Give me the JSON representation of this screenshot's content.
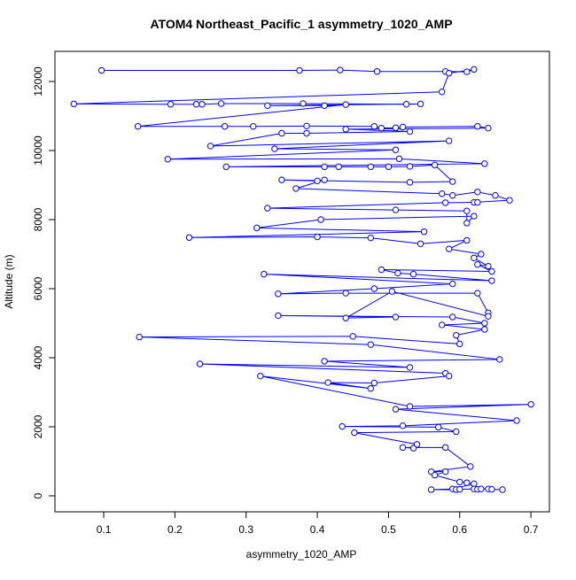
{
  "chart_data": {
    "type": "line",
    "title": "ATOM4 Northeast_Pacific_1 asymmetry_1020_AMP",
    "x_label": "asymmetry_1020_AMP",
    "y_label": "Altitude (m)",
    "color": "#0000ff",
    "markers": true,
    "xlim": [
      0.0315,
      0.726
    ],
    "ylim": [
      -462,
      12872
    ],
    "xticks": [
      0.1,
      0.2,
      0.3,
      0.4,
      0.5,
      0.6,
      0.7
    ],
    "yticks": [
      0,
      2000,
      4000,
      6000,
      8000,
      10000,
      12000
    ],
    "x": [
      0.097,
      0.375,
      0.432,
      0.484,
      0.58,
      0.61,
      0.62,
      0.585,
      0.575,
      0.058,
      0.194,
      0.23,
      0.238,
      0.265,
      0.38,
      0.525,
      0.545,
      0.33,
      0.41,
      0.44,
      0.148,
      0.27,
      0.31,
      0.385,
      0.48,
      0.49,
      0.51,
      0.52,
      0.625,
      0.64,
      0.44,
      0.53,
      0.385,
      0.35,
      0.25,
      0.585,
      0.34,
      0.51,
      0.19,
      0.515,
      0.635,
      0.272,
      0.41,
      0.43,
      0.475,
      0.5,
      0.53,
      0.565,
      0.59,
      0.53,
      0.35,
      0.4,
      0.41,
      0.37,
      0.575,
      0.59,
      0.625,
      0.65,
      0.67,
      0.62,
      0.625,
      0.58,
      0.33,
      0.51,
      0.61,
      0.61,
      0.62,
      0.405,
      0.315,
      0.55,
      0.22,
      0.4,
      0.475,
      0.545,
      0.61,
      0.585,
      0.63,
      0.62,
      0.64,
      0.625,
      0.645,
      0.49,
      0.513,
      0.535,
      0.645,
      0.325,
      0.59,
      0.48,
      0.345,
      0.44,
      0.625,
      0.64,
      0.64,
      0.505,
      0.44,
      0.51,
      0.345,
      0.59,
      0.635,
      0.575,
      0.635,
      0.595,
      0.6,
      0.45,
      0.15,
      0.475,
      0.656,
      0.41,
      0.53,
      0.235,
      0.58,
      0.585,
      0.48,
      0.415,
      0.475,
      0.32,
      0.53,
      0.7,
      0.51,
      0.68,
      0.52,
      0.435,
      0.57,
      0.595,
      0.452,
      0.54,
      0.535,
      0.52,
      0.58,
      0.615,
      0.56,
      0.58,
      0.565,
      0.6,
      0.61,
      0.62,
      0.59,
      0.56,
      0.595,
      0.6,
      0.62,
      0.625,
      0.63,
      0.64,
      0.645,
      0.66
    ],
    "values": [
      12320,
      12320,
      12330,
      12290,
      12290,
      12280,
      12350,
      12240,
      11700,
      11350,
      11340,
      11340,
      11340,
      11360,
      11360,
      11340,
      11350,
      11300,
      11300,
      11330,
      10700,
      10700,
      10700,
      10710,
      10700,
      10650,
      10660,
      10680,
      10700,
      10650,
      10620,
      10550,
      10500,
      10500,
      10130,
      10280,
      10050,
      10020,
      9750,
      9760,
      9620,
      9530,
      9530,
      9530,
      9530,
      9530,
      9540,
      9580,
      9100,
      9080,
      9150,
      9120,
      9150,
      8900,
      8750,
      8700,
      8800,
      8700,
      8560,
      8500,
      8500,
      8490,
      8330,
      8280,
      8250,
      7900,
      8100,
      8000,
      7760,
      7650,
      7480,
      7500,
      7470,
      7300,
      7400,
      7150,
      7000,
      6890,
      6650,
      6700,
      6500,
      6550,
      6450,
      6420,
      6230,
      6420,
      6140,
      6000,
      5850,
      5870,
      5870,
      5300,
      5200,
      5920,
      5150,
      5180,
      5220,
      5180,
      5000,
      4950,
      4820,
      4650,
      4400,
      4620,
      4600,
      4380,
      3950,
      3900,
      3720,
      3820,
      3550,
      3470,
      3270,
      3280,
      3110,
      3470,
      2590,
      2650,
      2510,
      2180,
      2030,
      2010,
      1990,
      1860,
      1830,
      1490,
      1380,
      1400,
      1400,
      850,
      700,
      700,
      600,
      400,
      380,
      350,
      200,
      180,
      180,
      190,
      200,
      190,
      200,
      200,
      190,
      180
    ]
  }
}
